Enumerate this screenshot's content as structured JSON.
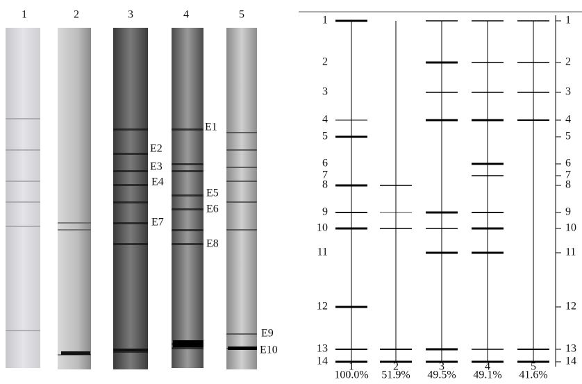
{
  "gel": {
    "lane_labels": [
      "1",
      "2",
      "3",
      "4",
      "5"
    ],
    "band_labels": [
      "E1",
      "E2",
      "E3",
      "E4",
      "E5",
      "E6",
      "E7",
      "E8",
      "E9",
      "E10"
    ]
  },
  "diagram": {
    "band_numbers": [
      "1",
      "2",
      "3",
      "4",
      "5",
      "6",
      "7",
      "8",
      "9",
      "10",
      "11",
      "12",
      "13",
      "14"
    ],
    "lane_labels": [
      "1",
      "2",
      "3",
      "4",
      "5"
    ],
    "similarities": [
      "100.0%",
      "51.9%",
      "49.5%",
      "49.1%",
      "41.6%"
    ]
  }
}
